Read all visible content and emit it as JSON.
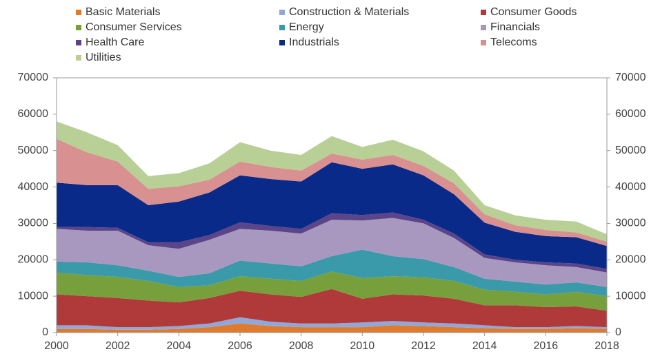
{
  "chart_data": {
    "type": "stacked_area",
    "x": [
      2000,
      2001,
      2002,
      2003,
      2004,
      2005,
      2006,
      2007,
      2008,
      2009,
      2010,
      2011,
      2012,
      2013,
      2014,
      2015,
      2016,
      2017,
      2018
    ],
    "xlim": [
      2000,
      2018
    ],
    "xticks": [
      2000,
      2002,
      2004,
      2006,
      2008,
      2010,
      2012,
      2014,
      2016,
      2018
    ],
    "ylim": [
      0,
      70000
    ],
    "yticks": [
      0,
      10000,
      20000,
      30000,
      40000,
      50000,
      60000,
      70000
    ],
    "y2lim": [
      0,
      70000
    ],
    "y2ticks": [
      0,
      10000,
      20000,
      30000,
      40000,
      50000,
      60000,
      70000
    ],
    "series": [
      {
        "name": "Basic Materials",
        "color": "#e07b2e",
        "values": [
          1000,
          1000,
          800,
          800,
          1000,
          1500,
          2500,
          1800,
          1500,
          1500,
          1500,
          2000,
          1800,
          1500,
          1200,
          1000,
          1000,
          1200,
          1000
        ]
      },
      {
        "name": "Construction & Materials",
        "color": "#8fa8d8",
        "values": [
          1000,
          1000,
          700,
          700,
          800,
          1000,
          1700,
          1200,
          1000,
          1000,
          1300,
          1200,
          1000,
          1000,
          800,
          500,
          500,
          600,
          500
        ]
      },
      {
        "name": "Consumer Goods",
        "color": "#b03a3a",
        "values": [
          8500,
          8000,
          8000,
          7300,
          6500,
          7000,
          7300,
          7500,
          7300,
          9500,
          6500,
          7300,
          7400,
          6800,
          5500,
          6000,
          5500,
          5400,
          4500
        ]
      },
      {
        "name": "Consumer Services",
        "color": "#77a03c",
        "values": [
          6000,
          5800,
          5800,
          5400,
          4200,
          3500,
          4000,
          4300,
          4400,
          4800,
          5700,
          5000,
          5000,
          4900,
          4300,
          3700,
          3500,
          4000,
          4000
        ]
      },
      {
        "name": "Energy",
        "color": "#3a9aaa",
        "values": [
          3000,
          3500,
          3200,
          2800,
          2800,
          3300,
          4300,
          4200,
          4000,
          4200,
          7800,
          5500,
          5000,
          3800,
          3000,
          2800,
          2700,
          2600,
          2500
        ]
      },
      {
        "name": "Financials",
        "color": "#a898c0",
        "values": [
          9000,
          8700,
          9500,
          7000,
          7700,
          9200,
          8700,
          9000,
          9000,
          10000,
          8000,
          10500,
          9800,
          8000,
          5700,
          5300,
          5300,
          4200,
          4000
        ]
      },
      {
        "name": "Health Care",
        "color": "#5b4588",
        "values": [
          500,
          1000,
          800,
          800,
          1800,
          1300,
          1800,
          1300,
          1300,
          1800,
          1500,
          1500,
          1000,
          1200,
          1000,
          700,
          800,
          1000,
          1000
        ]
      },
      {
        "name": "Industrials",
        "color": "#0a2a8a",
        "values": [
          12200,
          11500,
          11700,
          10200,
          11200,
          11700,
          12900,
          12900,
          13000,
          14000,
          12700,
          13200,
          12200,
          10800,
          8700,
          7700,
          7200,
          7200,
          6300
        ]
      },
      {
        "name": "Telecoms",
        "color": "#d99090",
        "values": [
          12000,
          9000,
          6500,
          4500,
          4200,
          3500,
          3800,
          3300,
          3000,
          2400,
          2500,
          2600,
          2600,
          3000,
          2300,
          1800,
          1700,
          1300,
          1200
        ]
      },
      {
        "name": "Utilities",
        "color": "#b8d096",
        "values": [
          4800,
          5500,
          4500,
          3500,
          3600,
          4500,
          5300,
          4500,
          4300,
          4800,
          3500,
          4200,
          4000,
          3500,
          2500,
          2700,
          2800,
          3000,
          2000
        ]
      }
    ]
  }
}
